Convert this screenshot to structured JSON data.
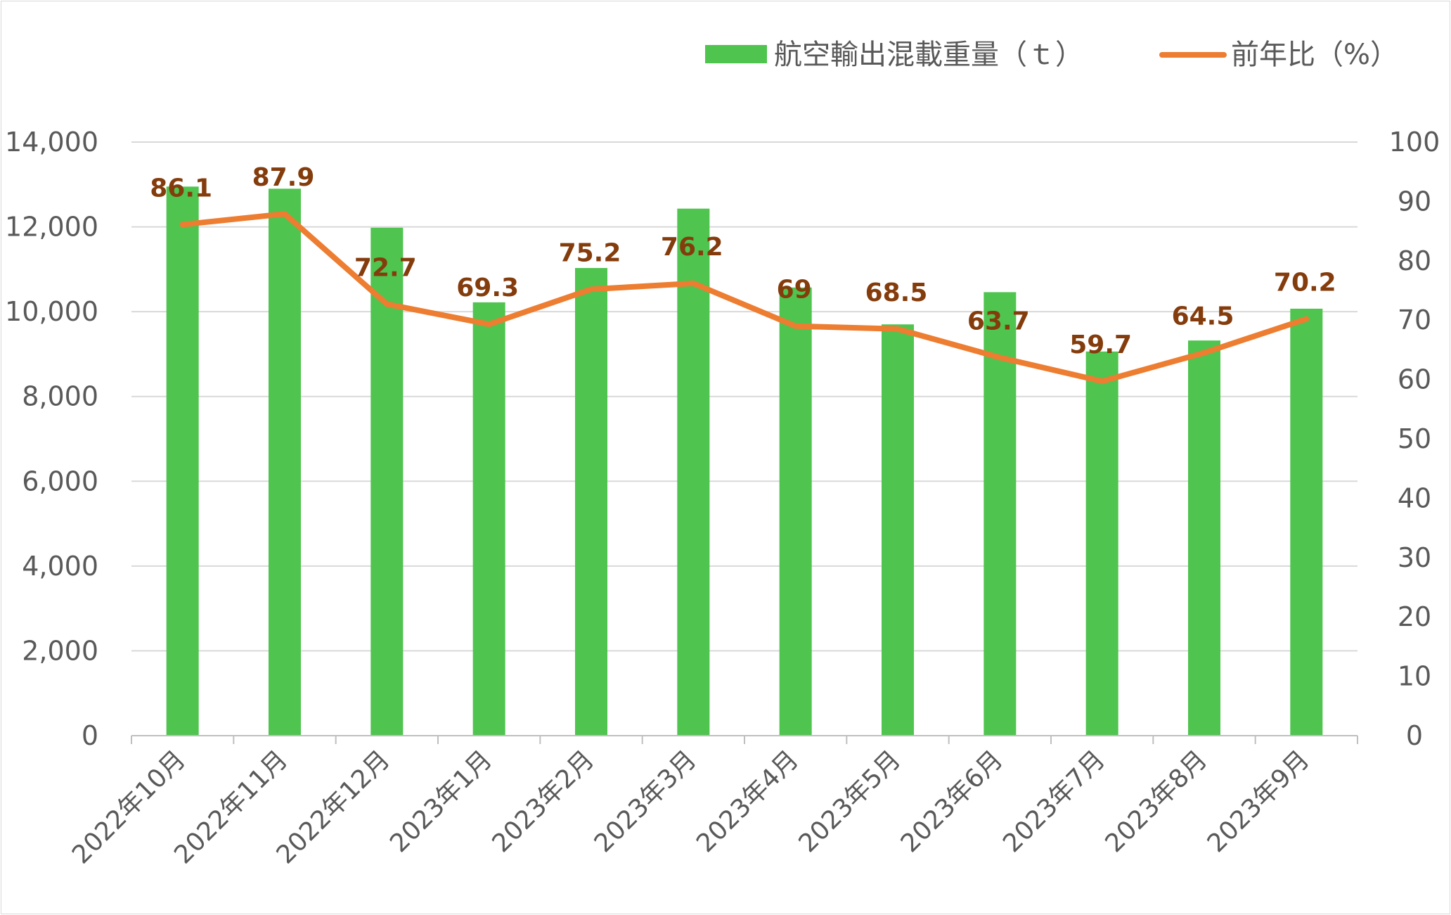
{
  "chart_data": {
    "type": "bar",
    "categories": [
      "2022年10月",
      "2022年11月",
      "2022年12月",
      "2023年1月",
      "2023年2月",
      "2023年3月",
      "2023年4月",
      "2023年5月",
      "2023年6月",
      "2023年7月",
      "2023年8月",
      "2023年9月"
    ],
    "series": [
      {
        "name": "航空輸出混載重量（ｔ）",
        "type": "bar",
        "axis": "left",
        "color": "#4fc44f",
        "values": [
          12950,
          12900,
          11980,
          10220,
          11030,
          12430,
          10570,
          9700,
          10460,
          9060,
          9320,
          10070
        ]
      },
      {
        "name": "前年比（%）",
        "type": "line",
        "axis": "right",
        "color": "#ed7d31",
        "values": [
          86.1,
          87.9,
          72.7,
          69.3,
          75.2,
          76.2,
          69,
          68.5,
          63.7,
          59.7,
          64.5,
          70.2
        ],
        "labels": [
          "86.1",
          "87.9",
          "72.7",
          "69.3",
          "75.2",
          "76.2",
          "69",
          "68.5",
          "63.7",
          "59.7",
          "64.5",
          "70.2"
        ]
      }
    ],
    "y_left": {
      "min": 0,
      "max": 14000,
      "step": 2000,
      "tick_labels": [
        "0",
        "2,000",
        "4,000",
        "6,000",
        "8,000",
        "10,000",
        "12,000",
        "14,000"
      ]
    },
    "y_right": {
      "min": 0,
      "max": 100,
      "step": 10,
      "tick_labels": [
        "0",
        "10",
        "20",
        "30",
        "40",
        "50",
        "60",
        "70",
        "80",
        "90",
        "100"
      ]
    },
    "grid": true,
    "legend_position": "top-right",
    "title": "",
    "xlabel": "",
    "ylabel": "",
    "label_color": "#843c0c"
  }
}
